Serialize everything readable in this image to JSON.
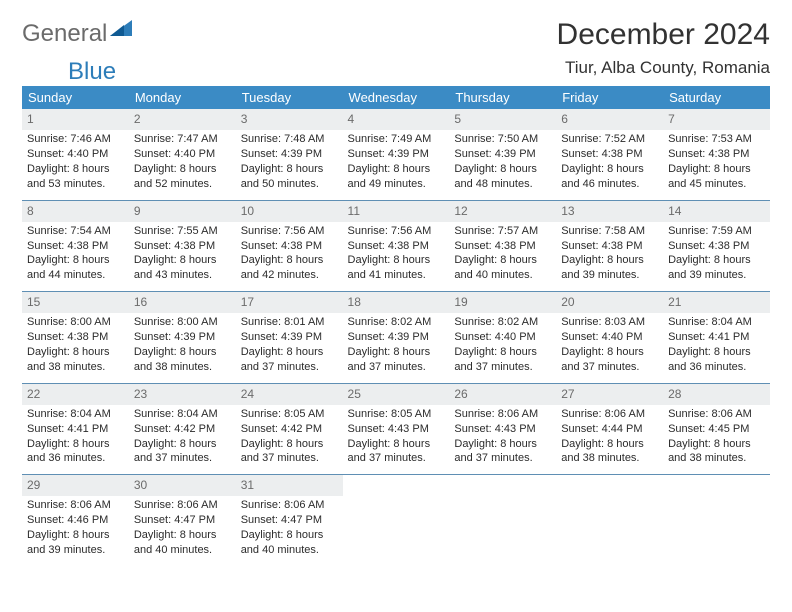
{
  "brand": {
    "part1": "General",
    "part2": "Blue"
  },
  "title": "December 2024",
  "location": "Tiur, Alba County, Romania",
  "colors": {
    "header_bg": "#3b8bc5",
    "header_fg": "#ffffff",
    "rule": "#5f8fb4",
    "daynum_bg": "#eceeef",
    "logo_gray": "#6b6b6b",
    "logo_blue": "#2d7db9"
  },
  "weekdays": [
    "Sunday",
    "Monday",
    "Tuesday",
    "Wednesday",
    "Thursday",
    "Friday",
    "Saturday"
  ],
  "days": [
    {
      "n": "1",
      "sr": "7:46 AM",
      "ss": "4:40 PM",
      "dl": "8 hours and 53 minutes."
    },
    {
      "n": "2",
      "sr": "7:47 AM",
      "ss": "4:40 PM",
      "dl": "8 hours and 52 minutes."
    },
    {
      "n": "3",
      "sr": "7:48 AM",
      "ss": "4:39 PM",
      "dl": "8 hours and 50 minutes."
    },
    {
      "n": "4",
      "sr": "7:49 AM",
      "ss": "4:39 PM",
      "dl": "8 hours and 49 minutes."
    },
    {
      "n": "5",
      "sr": "7:50 AM",
      "ss": "4:39 PM",
      "dl": "8 hours and 48 minutes."
    },
    {
      "n": "6",
      "sr": "7:52 AM",
      "ss": "4:38 PM",
      "dl": "8 hours and 46 minutes."
    },
    {
      "n": "7",
      "sr": "7:53 AM",
      "ss": "4:38 PM",
      "dl": "8 hours and 45 minutes."
    },
    {
      "n": "8",
      "sr": "7:54 AM",
      "ss": "4:38 PM",
      "dl": "8 hours and 44 minutes."
    },
    {
      "n": "9",
      "sr": "7:55 AM",
      "ss": "4:38 PM",
      "dl": "8 hours and 43 minutes."
    },
    {
      "n": "10",
      "sr": "7:56 AM",
      "ss": "4:38 PM",
      "dl": "8 hours and 42 minutes."
    },
    {
      "n": "11",
      "sr": "7:56 AM",
      "ss": "4:38 PM",
      "dl": "8 hours and 41 minutes."
    },
    {
      "n": "12",
      "sr": "7:57 AM",
      "ss": "4:38 PM",
      "dl": "8 hours and 40 minutes."
    },
    {
      "n": "13",
      "sr": "7:58 AM",
      "ss": "4:38 PM",
      "dl": "8 hours and 39 minutes."
    },
    {
      "n": "14",
      "sr": "7:59 AM",
      "ss": "4:38 PM",
      "dl": "8 hours and 39 minutes."
    },
    {
      "n": "15",
      "sr": "8:00 AM",
      "ss": "4:38 PM",
      "dl": "8 hours and 38 minutes."
    },
    {
      "n": "16",
      "sr": "8:00 AM",
      "ss": "4:39 PM",
      "dl": "8 hours and 38 minutes."
    },
    {
      "n": "17",
      "sr": "8:01 AM",
      "ss": "4:39 PM",
      "dl": "8 hours and 37 minutes."
    },
    {
      "n": "18",
      "sr": "8:02 AM",
      "ss": "4:39 PM",
      "dl": "8 hours and 37 minutes."
    },
    {
      "n": "19",
      "sr": "8:02 AM",
      "ss": "4:40 PM",
      "dl": "8 hours and 37 minutes."
    },
    {
      "n": "20",
      "sr": "8:03 AM",
      "ss": "4:40 PM",
      "dl": "8 hours and 37 minutes."
    },
    {
      "n": "21",
      "sr": "8:04 AM",
      "ss": "4:41 PM",
      "dl": "8 hours and 36 minutes."
    },
    {
      "n": "22",
      "sr": "8:04 AM",
      "ss": "4:41 PM",
      "dl": "8 hours and 36 minutes."
    },
    {
      "n": "23",
      "sr": "8:04 AM",
      "ss": "4:42 PM",
      "dl": "8 hours and 37 minutes."
    },
    {
      "n": "24",
      "sr": "8:05 AM",
      "ss": "4:42 PM",
      "dl": "8 hours and 37 minutes."
    },
    {
      "n": "25",
      "sr": "8:05 AM",
      "ss": "4:43 PM",
      "dl": "8 hours and 37 minutes."
    },
    {
      "n": "26",
      "sr": "8:06 AM",
      "ss": "4:43 PM",
      "dl": "8 hours and 37 minutes."
    },
    {
      "n": "27",
      "sr": "8:06 AM",
      "ss": "4:44 PM",
      "dl": "8 hours and 38 minutes."
    },
    {
      "n": "28",
      "sr": "8:06 AM",
      "ss": "4:45 PM",
      "dl": "8 hours and 38 minutes."
    },
    {
      "n": "29",
      "sr": "8:06 AM",
      "ss": "4:46 PM",
      "dl": "8 hours and 39 minutes."
    },
    {
      "n": "30",
      "sr": "8:06 AM",
      "ss": "4:47 PM",
      "dl": "8 hours and 40 minutes."
    },
    {
      "n": "31",
      "sr": "8:06 AM",
      "ss": "4:47 PM",
      "dl": "8 hours and 40 minutes."
    }
  ],
  "labels": {
    "sunrise": "Sunrise: ",
    "sunset": "Sunset: ",
    "daylight": "Daylight: "
  }
}
